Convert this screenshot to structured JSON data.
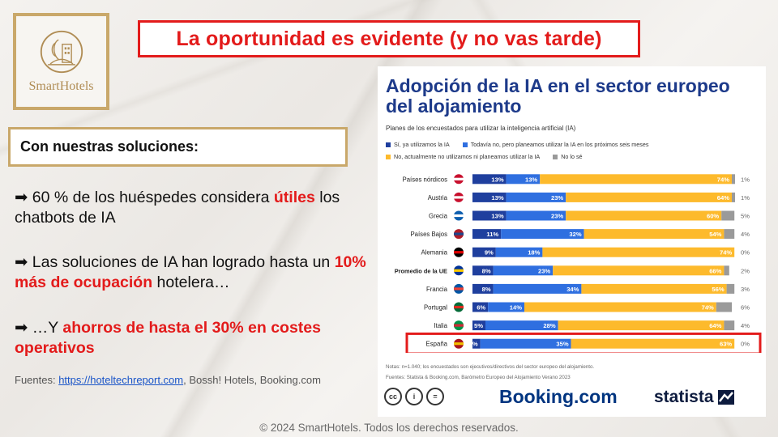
{
  "logo": {
    "text": "SmartHotels"
  },
  "title": "La oportunidad es evidente (y no vas tarde)",
  "solutions_label": "Con nuestras soluciones:",
  "bullets": [
    {
      "arrow": "➡",
      "pre": " 60 % de los huéspedes considera ",
      "hl": "útiles",
      "post": " los chatbots de IA"
    },
    {
      "arrow": "➡",
      "pre": " Las soluciones de IA han logrado hasta un ",
      "hl": "10% más de ocupación",
      "post": " hotelera…"
    },
    {
      "arrow": "➡",
      "pre": " …Y ",
      "hl": "ahorros de hasta el 30% en costes operativos",
      "post": ""
    }
  ],
  "sources": {
    "label": "Fuentes: ",
    "link": "https://hoteltechreport.com",
    "rest": ", Bossh! Hotels, Booking.com"
  },
  "footer": "© 2024 SmartHotels. Todos los derechos reservados.",
  "infographic": {
    "title": "Adopción de la IA en el sector europeo del alojamiento",
    "subtitle": "Planes de los encuestados para utilizar la inteligencia artificial (IA)",
    "notes": "Notas: n=1.040; los encuestados son ejecutivos/directivos del sector europeo del alojamiento.",
    "source": "Fuentes: Statista & Booking.com, Barómetro Europeo del Alojamiento Verano 2023",
    "brands": {
      "booking": "Booking.com",
      "statista": "statista"
    }
  },
  "chart_data": {
    "type": "bar",
    "stacked": true,
    "orientation": "horizontal",
    "categories": [
      "Países nórdicos",
      "Austria",
      "Grecia",
      "Países Bajos",
      "Alemania",
      "Promedio de la UE",
      "Francia",
      "Portugal",
      "Italia",
      "España"
    ],
    "series": [
      {
        "name": "Sí, ya utilizamos la IA",
        "color": "#1f3f9e",
        "values": [
          13,
          13,
          13,
          11,
          9,
          8,
          8,
          6,
          5,
          3
        ]
      },
      {
        "name": "Todavía no, pero planeamos utilizar la IA en los próximos seis meses",
        "color": "#2f6fe0",
        "values": [
          13,
          23,
          23,
          32,
          18,
          23,
          34,
          14,
          28,
          35
        ]
      },
      {
        "name": "No, actualmente no utilizamos ni planeamos utilizar la IA",
        "color": "#fdba2c",
        "values": [
          74,
          64,
          60,
          54,
          74,
          66,
          56,
          74,
          64,
          63
        ]
      },
      {
        "name": "No lo sé",
        "color": "#9a9a9a",
        "values": [
          1,
          1,
          5,
          4,
          0,
          2,
          3,
          6,
          4,
          0
        ]
      }
    ],
    "highlighted_category": "España",
    "unit": "%",
    "xlim": [
      0,
      100
    ]
  }
}
